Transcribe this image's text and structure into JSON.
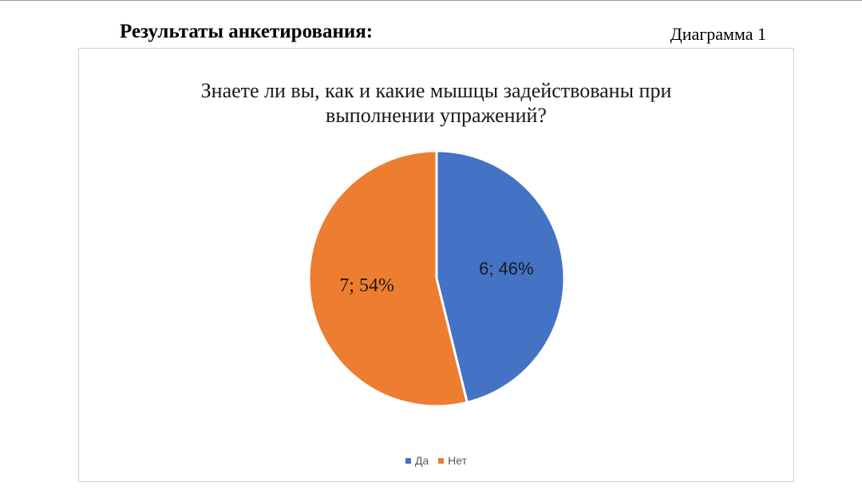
{
  "document": {
    "heading": "Результаты анкетирования:",
    "diagram_label": "Диаграмма 1"
  },
  "chart_data": {
    "type": "pie",
    "title_lines": [
      "Знаете ли вы, как и какие мышцы задействованы при",
      "выполнении упражений?"
    ],
    "slices": [
      {
        "name": "Да",
        "value": 6,
        "percent": 46,
        "label": "6; 46%",
        "color": "#4472C4"
      },
      {
        "name": "Нет",
        "value": 7,
        "percent": 54,
        "label": "7; 54%",
        "color": "#ED7D31"
      }
    ],
    "legend_position": "bottom",
    "start_angle": "12 o'clock",
    "direction": "clockwise"
  }
}
